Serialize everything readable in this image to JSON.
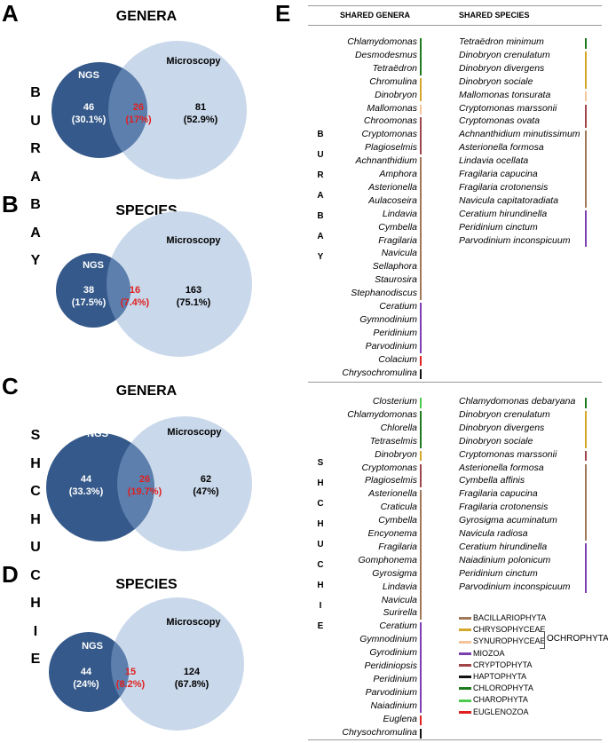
{
  "panels": {
    "a": {
      "letter": "A",
      "title": "GENERA",
      "left": "NGS",
      "right": "Microscopy",
      "left_n": "46",
      "left_pct": "(30.1%)",
      "mid_n": "26",
      "mid_pct": "(17%)",
      "right_n": "81",
      "right_pct": "(52.9%)"
    },
    "b": {
      "letter": "B",
      "title": "SPECIES",
      "left": "NGS",
      "right": "Microscopy",
      "left_n": "38",
      "left_pct": "(17.5%)",
      "mid_n": "16",
      "mid_pct": "(7.4%)",
      "right_n": "163",
      "right_pct": "(75.1%)"
    },
    "c": {
      "letter": "C",
      "title": "GENERA",
      "left": "NGS",
      "right": "Microscopy",
      "left_n": "44",
      "left_pct": "(33.3%)",
      "mid_n": "26",
      "mid_pct": "(19.7%)",
      "right_n": "62",
      "right_pct": "(47%)"
    },
    "d": {
      "letter": "D",
      "title": "SPECIES",
      "left": "NGS",
      "right": "Microscopy",
      "left_n": "44",
      "left_pct": "(24%)",
      "mid_n": "15",
      "mid_pct": "(8.2%)",
      "right_n": "124",
      "right_pct": "(67.8%)"
    }
  },
  "vertical_labels": {
    "burabay": [
      "B",
      "U",
      "R",
      "A",
      "B",
      "A",
      "Y"
    ],
    "shchuchie": [
      "S",
      "H",
      "C",
      "H",
      "U",
      "C",
      "H",
      "I",
      "E"
    ]
  },
  "e": {
    "letter": "E",
    "head_genera": "SHARED GENERA",
    "head_species": "SHARED SPECIES",
    "top_genera": [
      "Chlamydomonas",
      "Desmodesmus",
      "Tetraëdron",
      "Chromulina",
      "Dinobryon",
      "Mallomonas",
      "Chroomonas",
      "Cryptomonas",
      "Plagioselmis",
      "Achnanthidium",
      "Amphora",
      "Asterionella",
      "Aulacoseira",
      "Lindavia",
      "Cymbella",
      "Fragilaria",
      "Navicula",
      "Sellaphora",
      "Staurosira",
      "Stephanodiscus",
      "Ceratium",
      "Gymnodinium",
      "Peridinium",
      "Parvodinium",
      "Colacium",
      "Chrysochromulina"
    ],
    "top_species": [
      "Tetraëdron minimum",
      "Dinobryon crenulatum",
      "Dinobryon divergens",
      "Dinobryon sociale",
      "Mallomonas tonsurata",
      "Cryptomonas marssonii",
      "Cryptomonas ovata",
      "Achnanthidium minutissimum",
      "Asterionella formosa",
      "Lindavia ocellata",
      "Fragilaria capucina",
      "Fragilaria crotonensis",
      "Navicula capitatoradiata",
      "Ceratium hirundinella",
      "Peridinium cinctum",
      "Parvodinium inconspicuum"
    ],
    "bottom_genera": [
      "Closterium",
      "Chlamydomonas",
      "Chlorella",
      "Tetraselmis",
      "Dinobryon",
      "Cryptomonas",
      "Plagioselmis",
      "Asterionella",
      "Craticula",
      "Cymbella",
      "Encyonema",
      "Fragilaria",
      "Gomphonema",
      "Gyrosigma",
      "Lindavia",
      "Navicula",
      "Surirella",
      "Ceratium",
      "Gymnodinium",
      "Gyrodinium",
      "Peridiniopsis",
      "Peridinium",
      "Parvodinium",
      "Naiadinium",
      "Euglena",
      "Chrysochromulina"
    ],
    "bottom_species": [
      "Chlamydomonas debaryana",
      "Dinobryon crenulatum",
      "Dinobryon divergens",
      "Dinobryon sociale",
      "Cryptomonas marssonii",
      "Asterionella formosa",
      "Cymbella affinis",
      "Fragilaria capucina",
      "Fragilaria crotonensis",
      "Gyrosigma acuminatum",
      "Navicula radiosa",
      "Ceratium hirundinella",
      "Naiadinium polonicum",
      "Peridinium cinctum",
      "Parvodinium inconspicuum"
    ]
  },
  "legend": {
    "items": [
      {
        "label": "BACILLARIOPHYTA",
        "color": "#a0785a"
      },
      {
        "label": "CHRYSOPHYCEAE",
        "color": "#d4a62a"
      },
      {
        "label": "SYNUROPHYCEAE",
        "color": "#f4c49a"
      },
      {
        "label": "MIOZOA",
        "color": "#7a3fb0"
      },
      {
        "label": "CRYPTOPHYTA",
        "color": "#a0464a"
      },
      {
        "label": "HAPTOPHYTA",
        "color": "#111111"
      },
      {
        "label": "CHLOROPHYTA",
        "color": "#1e7a1e"
      },
      {
        "label": "CHAROPHYTA",
        "color": "#4ccc4c"
      },
      {
        "label": "EUGLENOZOA",
        "color": "#e02020"
      }
    ],
    "group_label": "OCHROPHYTA"
  },
  "colors": {
    "ngs": "#35598a",
    "overlap": "#5c7fad",
    "micro": "#c9d8ea",
    "overlap_text": "#e02020"
  }
}
